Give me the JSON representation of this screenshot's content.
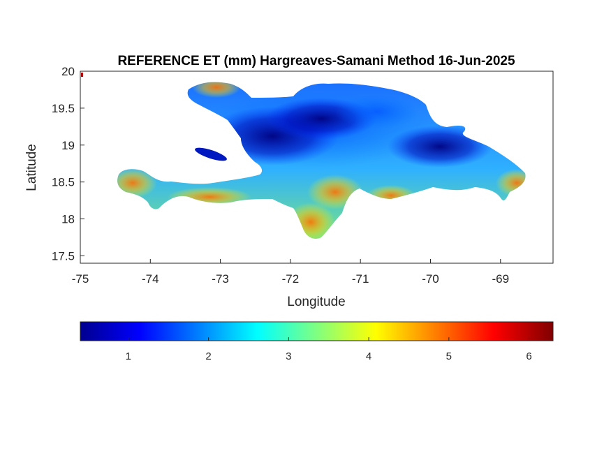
{
  "title": "REFERENCE ET (mm) Hargreaves-Samani Method  16-Jun-2025",
  "map": {
    "xlabel": "Longitude",
    "ylabel": "Latitude",
    "xlim": [
      -75,
      -68.25
    ],
    "ylim": [
      17.4,
      20
    ],
    "xticks": [
      "-75",
      "-74",
      "-73",
      "-72",
      "-71",
      "-70",
      "-69"
    ],
    "yticks": [
      "20",
      "19.5",
      "19",
      "18.5",
      "18",
      "17.5"
    ],
    "region_note_icon": "hispaniola-heatmap",
    "hotspots": [
      {
        "lon": -71.1,
        "lat": 18.4,
        "value": 5.0
      },
      {
        "lon": -71.7,
        "lat": 17.95,
        "value": 5.2
      },
      {
        "lon": -68.8,
        "lat": 18.35,
        "value": 4.8
      },
      {
        "lon": -72.9,
        "lat": 19.85,
        "value": 4.3
      },
      {
        "lon": -74.35,
        "lat": 18.5,
        "value": 4.4
      },
      {
        "lon": -70.5,
        "lat": 18.3,
        "value": 4.6
      }
    ],
    "coldspots": [
      {
        "lon": -72.2,
        "lat": 19.1,
        "value": 0.6
      },
      {
        "lon": -71.5,
        "lat": 19.45,
        "value": 0.9
      },
      {
        "lon": -70.0,
        "lat": 18.95,
        "value": 1.0
      }
    ]
  },
  "colorbar": {
    "range": [
      0.4,
      6.3
    ],
    "ticks": [
      "1",
      "2",
      "3",
      "4",
      "5",
      "6"
    ],
    "colormap": "jet"
  }
}
